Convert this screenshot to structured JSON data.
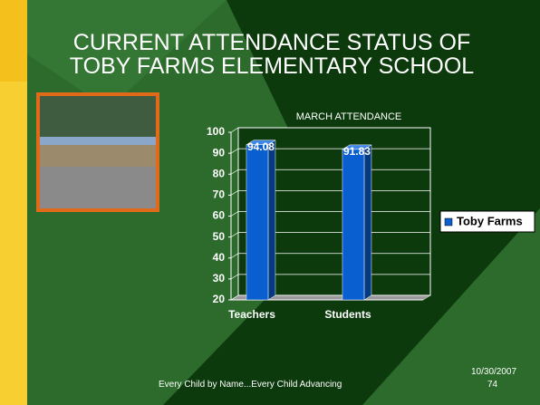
{
  "slide": {
    "title": "CURRENT ATTENDANCE STATUS OF TOBY FARMS ELEMENTARY SCHOOL",
    "footer": "Every Child by Name...Every Child Advancing",
    "date": "10/30/2007",
    "page": "74"
  },
  "chart_data": {
    "type": "bar",
    "title": "MARCH ATTENDANCE",
    "categories": [
      "Teachers",
      "Students"
    ],
    "series": [
      {
        "name": "Toby Farms",
        "color": "#0a5fd0",
        "values": [
          94.08,
          91.83
        ]
      }
    ],
    "ylim": [
      20,
      100
    ],
    "yticks": [
      20,
      30,
      40,
      50,
      60,
      70,
      80,
      90,
      100
    ],
    "grid": true,
    "legend": "right"
  }
}
